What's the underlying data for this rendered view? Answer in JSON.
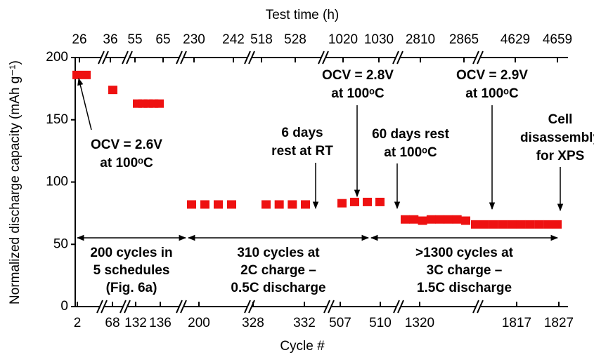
{
  "chart_data": {
    "type": "scatter",
    "ylabel": "Normalized discharge capacity (mAh g⁻¹)",
    "ylim": [
      0,
      200
    ],
    "yticks": [
      0,
      50,
      100,
      150,
      200
    ],
    "top_axis": {
      "label": "Test time (h)",
      "ticks": [
        26,
        36,
        55,
        65,
        230,
        242,
        518,
        528,
        1020,
        1030,
        2810,
        2865,
        4629,
        4659
      ]
    },
    "bottom_axis": {
      "label": "Cycle #",
      "ticks": [
        2,
        68,
        132,
        136,
        200,
        328,
        332,
        507,
        510,
        1320,
        1817,
        1827
      ]
    },
    "series": [
      {
        "color": "#ee1111",
        "values": [
          186,
          186,
          174,
          163,
          163,
          163,
          163,
          163,
          82,
          82,
          82,
          82,
          82,
          82,
          82,
          82,
          83,
          84,
          84,
          84,
          70,
          70,
          69,
          70,
          70,
          70,
          70,
          69,
          66,
          66,
          66,
          66,
          66,
          66,
          66,
          66,
          66,
          66
        ]
      }
    ],
    "annotations": [
      {
        "lines": [
          "OCV = 2.6V",
          "at 100ᵒC"
        ]
      },
      {
        "lines": [
          "6 days",
          "rest at RT"
        ]
      },
      {
        "lines": [
          "OCV = 2.8V",
          "at 100ᵒC"
        ]
      },
      {
        "lines": [
          "60 days rest",
          "at 100ᵒC"
        ]
      },
      {
        "lines": [
          "OCV = 2.9V",
          "at 100ᵒC"
        ]
      },
      {
        "lines": [
          "Cell",
          "disassembly",
          "for XPS"
        ]
      }
    ],
    "ranges": [
      {
        "lines": [
          "200 cycles in",
          "5 schedules",
          "(Fig. 6a)"
        ]
      },
      {
        "lines": [
          "310 cycles at",
          "2C charge –",
          "0.5C discharge"
        ]
      },
      {
        "lines": [
          ">1300 cycles at",
          "3C charge –",
          "1.5C discharge"
        ]
      }
    ]
  }
}
